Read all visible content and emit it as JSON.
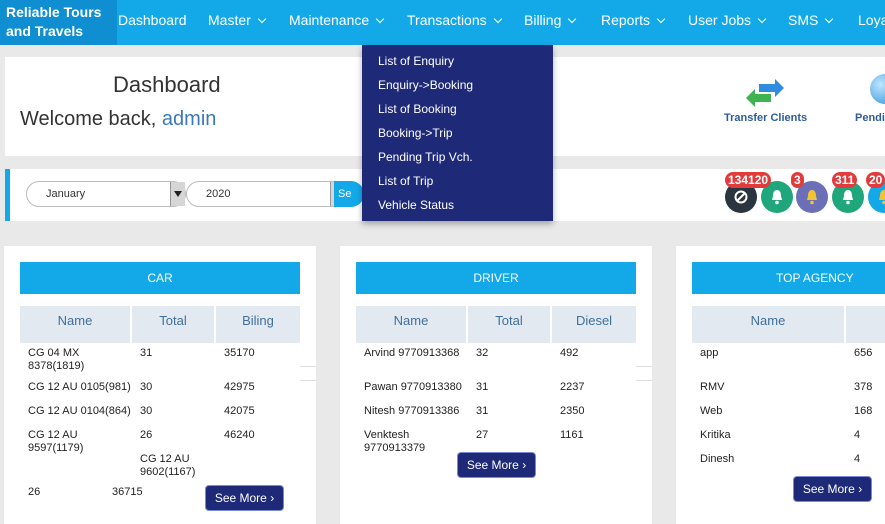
{
  "brand": "Reliable Tours and Travels",
  "nav": [
    {
      "label": "Dashboard",
      "chevron": false
    },
    {
      "label": "Master",
      "chevron": true
    },
    {
      "label": "Maintenance",
      "chevron": true
    },
    {
      "label": "Transactions",
      "chevron": true
    },
    {
      "label": "Billing",
      "chevron": true
    },
    {
      "label": "Reports",
      "chevron": true
    },
    {
      "label": "User Jobs",
      "chevron": true
    },
    {
      "label": "SMS",
      "chevron": true
    },
    {
      "label": "Loya",
      "chevron": false
    }
  ],
  "transactions_menu": [
    "List of Enquiry",
    "Enquiry->Booking",
    "List of Booking",
    "Booking->Trip",
    "Pending Trip Vch.",
    "List of Trip",
    "Vehicle Status"
  ],
  "header": {
    "title": "Dashboard",
    "welcome": "Welcome back,",
    "user": "admin"
  },
  "quick_links": [
    {
      "label": "Transfer Clients",
      "icon": "transfer-arrows-icon"
    },
    {
      "label": "Pendi",
      "icon": "globe-icon"
    }
  ],
  "filter": {
    "month": "January",
    "year": "2020",
    "search_label": "Se"
  },
  "notifications": [
    {
      "count": "134120",
      "icon": "no-entry-icon",
      "color": "#2b3540"
    },
    {
      "count": "",
      "icon": "bell-icon",
      "color": "#1fa67a"
    },
    {
      "count": "3",
      "icon": "bell-icon",
      "color": "#6a6fb8"
    },
    {
      "count": "311",
      "icon": "bell-icon",
      "color": "#1fa67a"
    },
    {
      "count": "20",
      "icon": "bell-icon",
      "color": "#13a9e8"
    }
  ],
  "car": {
    "title": "CAR",
    "headers": [
      "Name",
      "Total",
      "Biling"
    ],
    "rows": [
      [
        "CG 04 MX 8378(1819)",
        "31",
        "35170"
      ],
      [
        "CG 12 AU 0105(981)",
        "30",
        "42975"
      ],
      [
        "CG 12 AU 0104(864)",
        "30",
        "42075"
      ],
      [
        "CG 12 AU 9597(1179)",
        "26",
        "46240"
      ]
    ],
    "overflow": [
      "CG 12 AU 9602(1167)",
      "26",
      "36715"
    ],
    "see_more": "See More"
  },
  "driver": {
    "title": "DRIVER",
    "headers": [
      "Name",
      "Total",
      "Diesel"
    ],
    "rows": [
      [
        "Arvind 9770913368",
        "32",
        "492"
      ],
      [
        "Pawan 9770913380",
        "31",
        "2237"
      ],
      [
        "Nitesh 9770913386",
        "31",
        "2350"
      ],
      [
        "Venktesh 9770913379",
        "27",
        "1161"
      ]
    ],
    "see_more": "See More"
  },
  "agency": {
    "title": "TOP AGENCY",
    "headers": [
      "Name",
      ""
    ],
    "rows": [
      [
        "app",
        "656"
      ],
      [
        "RMV",
        "378"
      ],
      [
        "Web",
        "168"
      ],
      [
        "Kritika",
        "4"
      ],
      [
        "Dinesh",
        "4"
      ]
    ],
    "see_more": "See More"
  }
}
